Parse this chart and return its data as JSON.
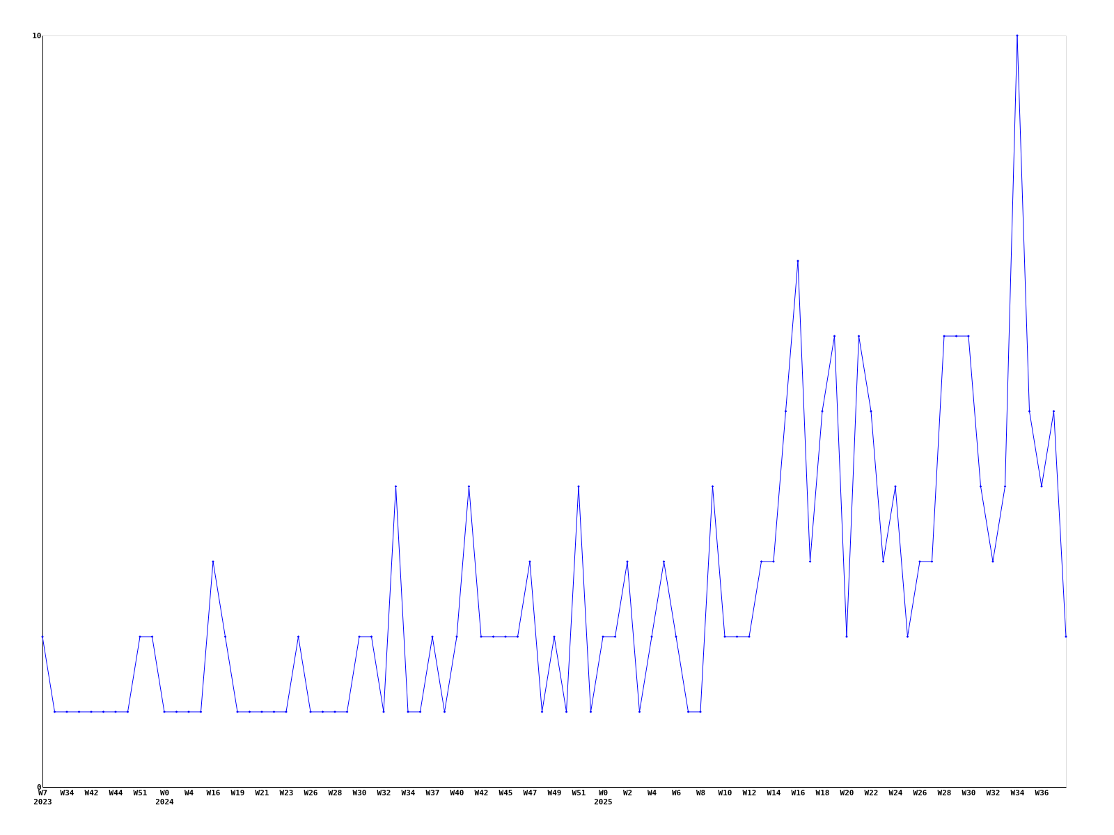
{
  "chart_data": {
    "type": "line",
    "categories": [
      "W7\n2023",
      null,
      "W34",
      null,
      "W42",
      null,
      "W44",
      null,
      "W51",
      null,
      "W0\n2024",
      null,
      "W4",
      null,
      "W16",
      null,
      "W19",
      null,
      "W21",
      null,
      "W23",
      null,
      "W26",
      null,
      "W28",
      null,
      "W30",
      null,
      "W32",
      null,
      "W34",
      null,
      "W37",
      null,
      "W40",
      null,
      "W42",
      null,
      "W45",
      null,
      "W47",
      null,
      "W49",
      null,
      "W51",
      null,
      "W0\n2025",
      null,
      "W2",
      null,
      "W4",
      null,
      "W6",
      null,
      "W8",
      null,
      "W10",
      null,
      "W12",
      null,
      "W14",
      null,
      "W16",
      null,
      "W18",
      null,
      "W20",
      null,
      "W22",
      null,
      "W24",
      null,
      "W26",
      null,
      "W28",
      null,
      "W30",
      null,
      "W32",
      null,
      "W34",
      null,
      "W36",
      null,
      null
    ],
    "series": [
      {
        "color": "#0000ff",
        "values": [
          2,
          1,
          1,
          1,
          1,
          1,
          1,
          1,
          2,
          2,
          1,
          1,
          1,
          1,
          3,
          2,
          1,
          1,
          1,
          1,
          1,
          2,
          1,
          1,
          1,
          1,
          2,
          2,
          1,
          4,
          1,
          1,
          2,
          1,
          2,
          4,
          2,
          2,
          2,
          2,
          3,
          1,
          2,
          1,
          4,
          1,
          2,
          2,
          3,
          1,
          2,
          3,
          2,
          1,
          1,
          4,
          2,
          2,
          2,
          3,
          3,
          5,
          7,
          3,
          5,
          6,
          2,
          6,
          5,
          3,
          4,
          2,
          3,
          3,
          6,
          6,
          6,
          4,
          3,
          4,
          10,
          5,
          4,
          5,
          2
        ]
      }
    ],
    "ylim": [
      0,
      10
    ],
    "yticks": [
      0,
      10
    ],
    "grid": false,
    "marker": "diamond",
    "line_style": "solid"
  }
}
